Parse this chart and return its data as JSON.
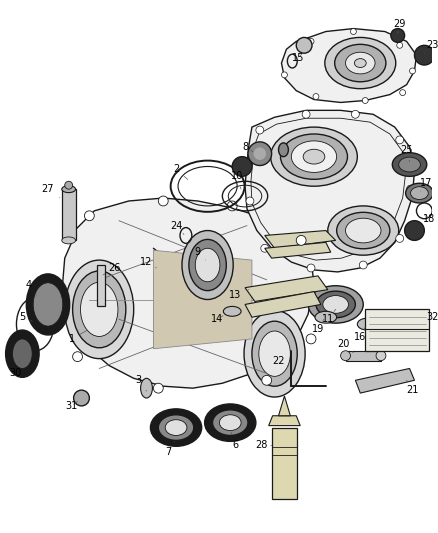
{
  "bg_color": "#ffffff",
  "line_color": "#1a1a1a",
  "label_color": "#000000",
  "figsize": [
    4.38,
    5.33
  ],
  "dpi": 100,
  "lw_main": 1.0,
  "lw_thin": 0.6,
  "lw_thick": 1.4,
  "gray_light": "#e8e8e8",
  "gray_mid": "#c0c0c0",
  "gray_dark": "#555555",
  "gray_fill": "#f0f0f0",
  "tan_fill": "#d8d4b8",
  "label_fs": 7.0
}
